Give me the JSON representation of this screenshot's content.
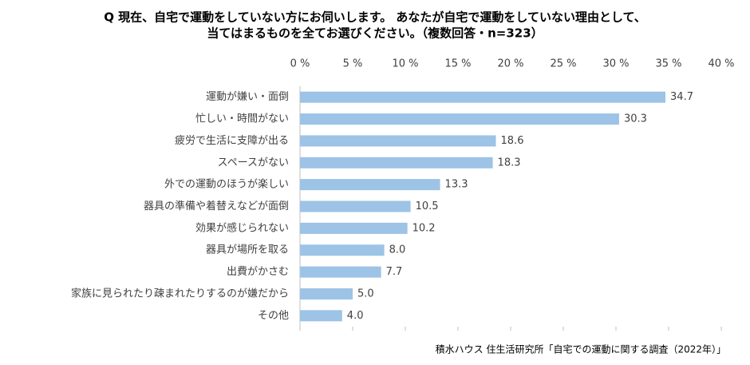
{
  "chart_data": {
    "type": "bar",
    "orientation": "horizontal",
    "title": [
      "Q 現在、自宅で運動をしていない方にお伺いします。 あなたが自宅で運動をしていない理由として、",
      "当てはまるものを全てお選びください。（複数回答・n=323）"
    ],
    "categories": [
      "運動が嫌い・面倒",
      "忙しい・時間がない",
      "疲労で生活に支障が出る",
      "スペースがない",
      "外での運動のほうが楽しい",
      "器具の準備や着替えなどが面倒",
      "効果が感じられない",
      "器具が場所を取る",
      "出費がかさむ",
      "家族に見られたり疎まれたりするのが嫌だから",
      "その他"
    ],
    "values": [
      34.7,
      30.3,
      18.6,
      18.3,
      13.3,
      10.5,
      10.2,
      8.0,
      7.7,
      5.0,
      4.0
    ],
    "value_labels": [
      "34.7",
      "30.3",
      "18.6",
      "18.3",
      "13.3",
      "10.5",
      "10.2",
      "8.0",
      "7.7",
      "5.0",
      "4.0"
    ],
    "color": "#9dc3e6",
    "xlim": [
      0,
      40
    ],
    "xticks": [
      {
        "value": 0,
        "label": "0 %"
      },
      {
        "value": 5,
        "label": "5 %"
      },
      {
        "value": 10,
        "label": "10 %"
      },
      {
        "value": 15,
        "label": "15 %"
      },
      {
        "value": 20,
        "label": "20 %"
      },
      {
        "value": 25,
        "label": "25 %"
      },
      {
        "value": 30,
        "label": "30 %"
      },
      {
        "value": 35,
        "label": "35 %"
      },
      {
        "value": 40,
        "label": "40 %"
      }
    ],
    "source": "積水ハウス 住生活研究所「自宅での運動に関する調査（2022年）」"
  }
}
